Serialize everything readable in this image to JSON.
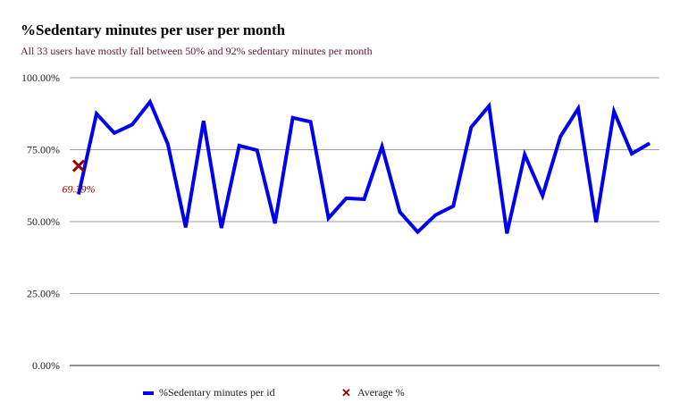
{
  "chart_data": {
    "type": "line",
    "title": "%Sedentary minutes per user per month",
    "subtitle": "All 33 users have mostly fall between 50% and 92% sedentary minutes per month",
    "xlabel": "",
    "ylabel": "",
    "ylim": [
      0,
      100
    ],
    "yticks": [
      "0.00%",
      "25.00%",
      "50.00%",
      "75.00%",
      "100.00%"
    ],
    "grid": true,
    "legend_position": "bottom",
    "series": [
      {
        "name": "%Sedentary minutes per id",
        "color": "#0000ee",
        "values": [
          59.5,
          87.5,
          80.8,
          83.7,
          91.6,
          77.0,
          48.0,
          85.0,
          47.8,
          76.4,
          74.8,
          49.4,
          86.1,
          84.7,
          51.2,
          58.1,
          57.8,
          76.1,
          53.4,
          46.4,
          52.3,
          55.4,
          82.8,
          90.2,
          45.9,
          73.3,
          59.0,
          79.6,
          89.3,
          49.8,
          88.3,
          73.6,
          77.2
        ]
      }
    ],
    "average": {
      "name": "Average %",
      "value": 69.39,
      "label": "69.39%",
      "color": "#8b0000"
    }
  }
}
